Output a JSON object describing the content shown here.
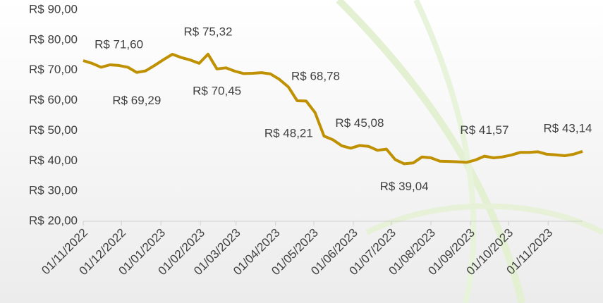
{
  "chart_data": {
    "type": "line",
    "color": "#bf9000",
    "x": [
      "2022-11-01",
      "2022-11-08",
      "2022-11-15",
      "2022-11-22",
      "2022-11-29",
      "2022-12-06",
      "2022-12-13",
      "2022-12-20",
      "2022-12-27",
      "2023-01-03",
      "2023-01-10",
      "2023-01-17",
      "2023-01-24",
      "2023-01-31",
      "2023-02-07",
      "2023-02-14",
      "2023-02-21",
      "2023-02-28",
      "2023-03-07",
      "2023-03-14",
      "2023-03-21",
      "2023-03-28",
      "2023-04-04",
      "2023-04-11",
      "2023-04-18",
      "2023-04-25",
      "2023-05-02",
      "2023-05-09",
      "2023-05-16",
      "2023-05-23",
      "2023-05-30",
      "2023-06-06",
      "2023-06-13",
      "2023-06-20",
      "2023-06-27",
      "2023-07-04",
      "2023-07-11",
      "2023-07-18",
      "2023-07-25",
      "2023-08-01",
      "2023-08-08",
      "2023-08-15",
      "2023-08-22",
      "2023-08-29",
      "2023-09-05",
      "2023-09-12",
      "2023-09-19",
      "2023-09-26",
      "2023-10-03",
      "2023-10-10",
      "2023-10-17",
      "2023-10-24",
      "2023-10-31",
      "2023-11-07",
      "2023-11-14",
      "2023-11-21",
      "2023-11-28"
    ],
    "values": [
      73.2,
      72.3,
      71.0,
      71.8,
      71.6,
      71.0,
      69.29,
      69.8,
      71.6,
      73.5,
      75.3,
      74.2,
      73.4,
      72.3,
      75.32,
      70.45,
      70.8,
      69.7,
      68.9,
      69.0,
      69.2,
      68.78,
      67.0,
      64.5,
      59.9,
      59.8,
      56.0,
      48.21,
      47.0,
      45.0,
      44.2,
      45.08,
      44.8,
      43.5,
      43.9,
      40.4,
      39.04,
      39.3,
      41.3,
      41.0,
      39.9,
      39.8,
      39.7,
      39.5,
      40.3,
      41.57,
      41.0,
      41.3,
      41.9,
      42.8,
      42.8,
      43.0,
      42.2,
      42.0,
      41.7,
      42.2,
      43.14
    ],
    "value_labels": [
      null,
      null,
      null,
      null,
      "R$ 71,60",
      null,
      "R$ 69,29",
      null,
      null,
      null,
      null,
      null,
      null,
      null,
      "R$ 75,32",
      "R$ 70,45",
      null,
      null,
      null,
      null,
      null,
      "R$ 68,78",
      null,
      null,
      null,
      null,
      null,
      "R$ 48,21",
      null,
      null,
      null,
      "R$ 45,08",
      null,
      null,
      null,
      null,
      "R$ 39,04",
      null,
      null,
      null,
      null,
      null,
      null,
      null,
      null,
      "R$ 41,57",
      null,
      null,
      null,
      null,
      null,
      null,
      null,
      null,
      null,
      null,
      "R$ 43,14"
    ],
    "xlim": [
      "2022-11-01",
      "2023-11-28"
    ],
    "xticks": [
      {
        "value": "2022-11-01",
        "label": "01/11/2022"
      },
      {
        "value": "2022-12-01",
        "label": "01/12/2022"
      },
      {
        "value": "2023-01-01",
        "label": "01/01/2023"
      },
      {
        "value": "2023-02-01",
        "label": "01/02/2023"
      },
      {
        "value": "2023-03-01",
        "label": "01/03/2023"
      },
      {
        "value": "2023-04-01",
        "label": "01/04/2023"
      },
      {
        "value": "2023-05-01",
        "label": "01/05/2023"
      },
      {
        "value": "2023-06-01",
        "label": "01/06/2023"
      },
      {
        "value": "2023-07-01",
        "label": "01/07/2023"
      },
      {
        "value": "2023-08-01",
        "label": "01/08/2023"
      },
      {
        "value": "2023-09-01",
        "label": "01/09/2023"
      },
      {
        "value": "2023-10-01",
        "label": "01/10/2023"
      },
      {
        "value": "2023-11-01",
        "label": "01/11/2023"
      }
    ],
    "ylim": [
      20,
      90
    ],
    "yticks": [
      {
        "value": 20,
        "label": "R$ 20,00"
      },
      {
        "value": 30,
        "label": "R$ 30,00"
      },
      {
        "value": 40,
        "label": "R$ 40,00"
      },
      {
        "value": 50,
        "label": "R$ 50,00"
      },
      {
        "value": 60,
        "label": "R$ 60,00"
      },
      {
        "value": 70,
        "label": "R$ 70,00"
      },
      {
        "value": 80,
        "label": "R$ 80,00"
      },
      {
        "value": 90,
        "label": "R$ 90,00"
      }
    ]
  }
}
